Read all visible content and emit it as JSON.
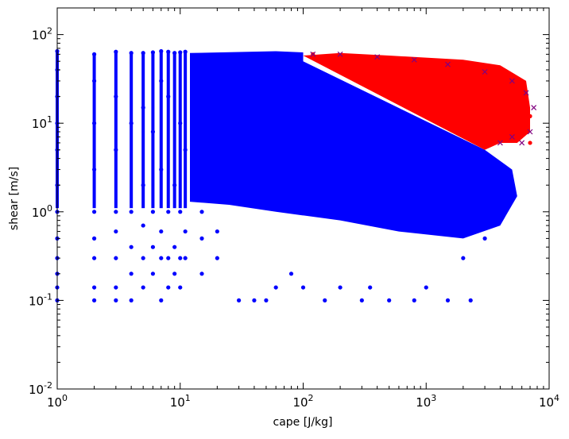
{
  "chart_data": {
    "type": "scatter",
    "title": "",
    "xlabel": "cape [J/kg]",
    "ylabel": "shear [m/s]",
    "xscale": "log",
    "yscale": "log",
    "xlim": [
      1,
      10000
    ],
    "ylim": [
      0.01,
      200
    ],
    "x_ticks": [
      {
        "value": 1,
        "base": "10",
        "exp": "0"
      },
      {
        "value": 10,
        "base": "10",
        "exp": "1"
      },
      {
        "value": 100,
        "base": "10",
        "exp": "2"
      },
      {
        "value": 1000,
        "base": "10",
        "exp": "3"
      },
      {
        "value": 10000,
        "base": "10",
        "exp": "4"
      }
    ],
    "y_ticks": [
      {
        "value": 0.01,
        "base": "10",
        "exp": "-2"
      },
      {
        "value": 0.1,
        "base": "10",
        "exp": "-1"
      },
      {
        "value": 1,
        "base": "10",
        "exp": "0"
      },
      {
        "value": 10,
        "base": "10",
        "exp": "1"
      },
      {
        "value": 100,
        "base": "10",
        "exp": "2"
      }
    ],
    "grid": false,
    "legend": false,
    "series": [
      {
        "color": "#0000ff",
        "marker": "circle",
        "points": [
          [
            1,
            0.1
          ],
          [
            1,
            0.14
          ],
          [
            1,
            0.2
          ],
          [
            1,
            0.3
          ],
          [
            1,
            0.5
          ],
          [
            1,
            1
          ],
          [
            1,
            2
          ],
          [
            1,
            5
          ],
          [
            1,
            10
          ],
          [
            1,
            20
          ],
          [
            1,
            40
          ],
          [
            1,
            65
          ],
          [
            2,
            0.1
          ],
          [
            2,
            0.14
          ],
          [
            2,
            0.3
          ],
          [
            2,
            0.5
          ],
          [
            2,
            1
          ],
          [
            2,
            3
          ],
          [
            2,
            10
          ],
          [
            2,
            30
          ],
          [
            2,
            60
          ],
          [
            3,
            0.1
          ],
          [
            3,
            0.14
          ],
          [
            3,
            0.3
          ],
          [
            3,
            0.6
          ],
          [
            3,
            1
          ],
          [
            3,
            5
          ],
          [
            3,
            20
          ],
          [
            3,
            64
          ],
          [
            4,
            0.1
          ],
          [
            4,
            0.2
          ],
          [
            4,
            0.4
          ],
          [
            4,
            1
          ],
          [
            4,
            10
          ],
          [
            4,
            62
          ],
          [
            5,
            0.14
          ],
          [
            5,
            0.3
          ],
          [
            5,
            0.7
          ],
          [
            5,
            2
          ],
          [
            5,
            15
          ],
          [
            5,
            62
          ],
          [
            6,
            0.2
          ],
          [
            6,
            0.4
          ],
          [
            6,
            1
          ],
          [
            6,
            8
          ],
          [
            6,
            63
          ],
          [
            7,
            0.1
          ],
          [
            7,
            0.3
          ],
          [
            7,
            0.6
          ],
          [
            7,
            3
          ],
          [
            7,
            30
          ],
          [
            7,
            65
          ],
          [
            8,
            0.14
          ],
          [
            8,
            0.3
          ],
          [
            8,
            1
          ],
          [
            8,
            20
          ],
          [
            8,
            64
          ],
          [
            9,
            0.2
          ],
          [
            9,
            0.4
          ],
          [
            9,
            2
          ],
          [
            9,
            62
          ],
          [
            10,
            0.14
          ],
          [
            10,
            0.3
          ],
          [
            10,
            1
          ],
          [
            10,
            10
          ],
          [
            10,
            63
          ],
          [
            11,
            0.3
          ],
          [
            11,
            0.6
          ],
          [
            11,
            5
          ],
          [
            11,
            64
          ],
          [
            15,
            0.2
          ],
          [
            15,
            0.5
          ],
          [
            15,
            1
          ],
          [
            20,
            0.3
          ],
          [
            20,
            0.6
          ],
          [
            30,
            0.1
          ],
          [
            40,
            0.1
          ],
          [
            50,
            0.1
          ],
          [
            60,
            0.14
          ],
          [
            80,
            0.2
          ],
          [
            150,
            0.1
          ],
          [
            300,
            0.1
          ],
          [
            500,
            0.1
          ],
          [
            800,
            0.1
          ],
          [
            1500,
            0.1
          ],
          [
            2300,
            0.1
          ],
          [
            100,
            0.14
          ],
          [
            200,
            0.14
          ],
          [
            350,
            0.14
          ],
          [
            1000,
            0.14
          ],
          [
            2000,
            0.3
          ],
          [
            3000,
            0.5
          ],
          [
            4000,
            1
          ],
          [
            5000,
            2
          ]
        ]
      },
      {
        "color": "#ff0000",
        "marker": "circle",
        "points": [
          [
            120,
            60
          ],
          [
            200,
            58
          ],
          [
            400,
            55
          ],
          [
            800,
            50
          ],
          [
            1500,
            45
          ],
          [
            3000,
            35
          ],
          [
            5000,
            25
          ],
          [
            6500,
            18
          ],
          [
            7000,
            12
          ],
          [
            7000,
            6
          ]
        ]
      },
      {
        "color": "#800080",
        "marker": "x",
        "points": [
          [
            120,
            60
          ],
          [
            200,
            60
          ],
          [
            400,
            56
          ],
          [
            800,
            52
          ],
          [
            1500,
            46
          ],
          [
            3000,
            38
          ],
          [
            5000,
            30
          ],
          [
            6500,
            22
          ],
          [
            7500,
            15
          ],
          [
            7000,
            8
          ],
          [
            6000,
            6
          ],
          [
            5000,
            7
          ],
          [
            4000,
            6
          ]
        ]
      }
    ]
  }
}
